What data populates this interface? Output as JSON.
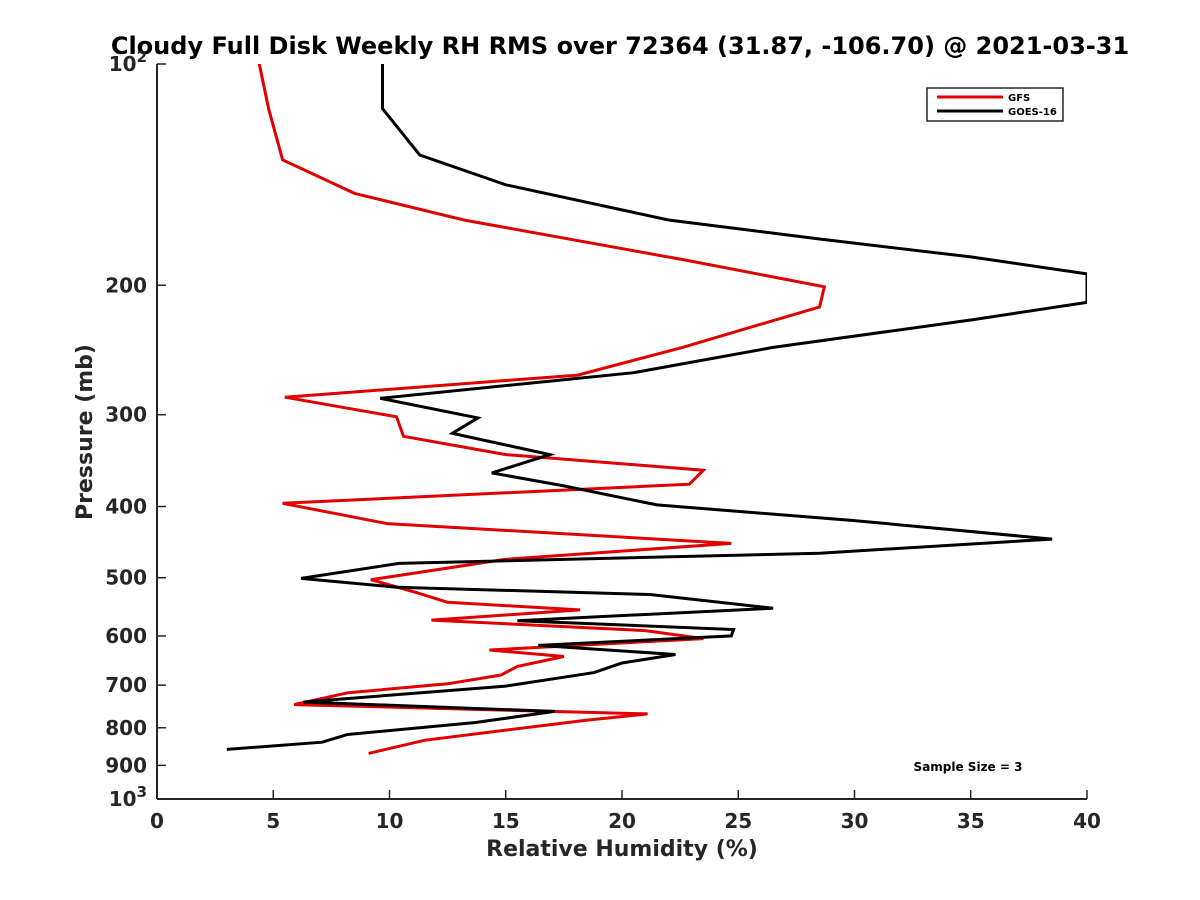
{
  "chart_data": {
    "type": "line",
    "title": "Cloudy Full Disk Weekly RH RMS over 72364 (31.87, -106.70) @ 2021-03-31",
    "xlabel": "Relative Humidity (%)",
    "ylabel": "Pressure (mb)",
    "xlim": [
      0,
      40
    ],
    "ylim": [
      100,
      1000
    ],
    "y_scale": "log",
    "y_reversed": true,
    "x_ticks": [
      "0",
      "5",
      "10",
      "15",
      "20",
      "25",
      "30",
      "35",
      "40"
    ],
    "y_ticks": [
      {
        "value": 100,
        "label": "10",
        "sup": "2"
      },
      {
        "value": 200,
        "label": "200"
      },
      {
        "value": 300,
        "label": "300"
      },
      {
        "value": 400,
        "label": "400"
      },
      {
        "value": 500,
        "label": "500"
      },
      {
        "value": 600,
        "label": "600"
      },
      {
        "value": 700,
        "label": "700"
      },
      {
        "value": 800,
        "label": "800"
      },
      {
        "value": 900,
        "label": "900"
      },
      {
        "value": 1000,
        "label": "10",
        "sup": "3"
      }
    ],
    "legend_position": "top-right",
    "annotation": "Sample Size = 3",
    "series": [
      {
        "name": "GFS",
        "color": "#e00000",
        "points": [
          [
            4.4,
            100
          ],
          [
            4.8,
            115
          ],
          [
            5.4,
            135
          ],
          [
            8.5,
            150
          ],
          [
            13.2,
            163
          ],
          [
            22.8,
            185
          ],
          [
            28.7,
            201
          ],
          [
            28.5,
            214
          ],
          [
            22.6,
            243
          ],
          [
            18.1,
            265
          ],
          [
            5.5,
            284
          ],
          [
            10.3,
            302
          ],
          [
            10.6,
            321
          ],
          [
            15.0,
            340
          ],
          [
            23.5,
            357
          ],
          [
            22.9,
            373
          ],
          [
            5.4,
            396
          ],
          [
            9.9,
            422
          ],
          [
            24.7,
            449
          ],
          [
            15.0,
            472
          ],
          [
            9.2,
            503
          ],
          [
            11.0,
            522
          ],
          [
            12.5,
            540
          ],
          [
            18.2,
            553
          ],
          [
            11.8,
            571
          ],
          [
            21.0,
            590
          ],
          [
            23.5,
            605
          ],
          [
            14.3,
            627
          ],
          [
            17.5,
            640
          ],
          [
            15.5,
            660
          ],
          [
            14.8,
            678
          ],
          [
            12.5,
            697
          ],
          [
            8.2,
            717
          ],
          [
            5.9,
            744
          ],
          [
            21.1,
            766
          ],
          [
            18.5,
            781
          ],
          [
            11.5,
            832
          ],
          [
            9.1,
            867
          ]
        ]
      },
      {
        "name": "GOES-16",
        "color": "#000000",
        "points": [
          [
            9.7,
            100
          ],
          [
            9.7,
            115
          ],
          [
            11.3,
            133
          ],
          [
            15.0,
            146
          ],
          [
            22.0,
            163
          ],
          [
            28.5,
            173
          ],
          [
            35.0,
            183
          ],
          [
            40.0,
            193
          ],
          [
            40.0,
            211
          ],
          [
            35.0,
            223
          ],
          [
            26.5,
            243
          ],
          [
            20.5,
            263
          ],
          [
            9.6,
            285
          ],
          [
            13.8,
            303
          ],
          [
            12.7,
            318
          ],
          [
            16.9,
            340
          ],
          [
            14.4,
            360
          ],
          [
            17.5,
            375
          ],
          [
            21.5,
            398
          ],
          [
            30.0,
            418
          ],
          [
            38.5,
            443
          ],
          [
            28.5,
            463
          ],
          [
            10.4,
            478
          ],
          [
            6.2,
            501
          ],
          [
            10.3,
            515
          ],
          [
            21.2,
            527
          ],
          [
            26.5,
            550
          ],
          [
            15.5,
            572
          ],
          [
            24.8,
            588
          ],
          [
            24.7,
            600
          ],
          [
            16.4,
            618
          ],
          [
            22.3,
            636
          ],
          [
            20.0,
            653
          ],
          [
            18.8,
            673
          ],
          [
            15.0,
            702
          ],
          [
            6.3,
            738
          ],
          [
            17.1,
            760
          ],
          [
            13.7,
            787
          ],
          [
            8.2,
            817
          ],
          [
            7.1,
            837
          ],
          [
            3.0,
            856
          ]
        ]
      }
    ]
  }
}
